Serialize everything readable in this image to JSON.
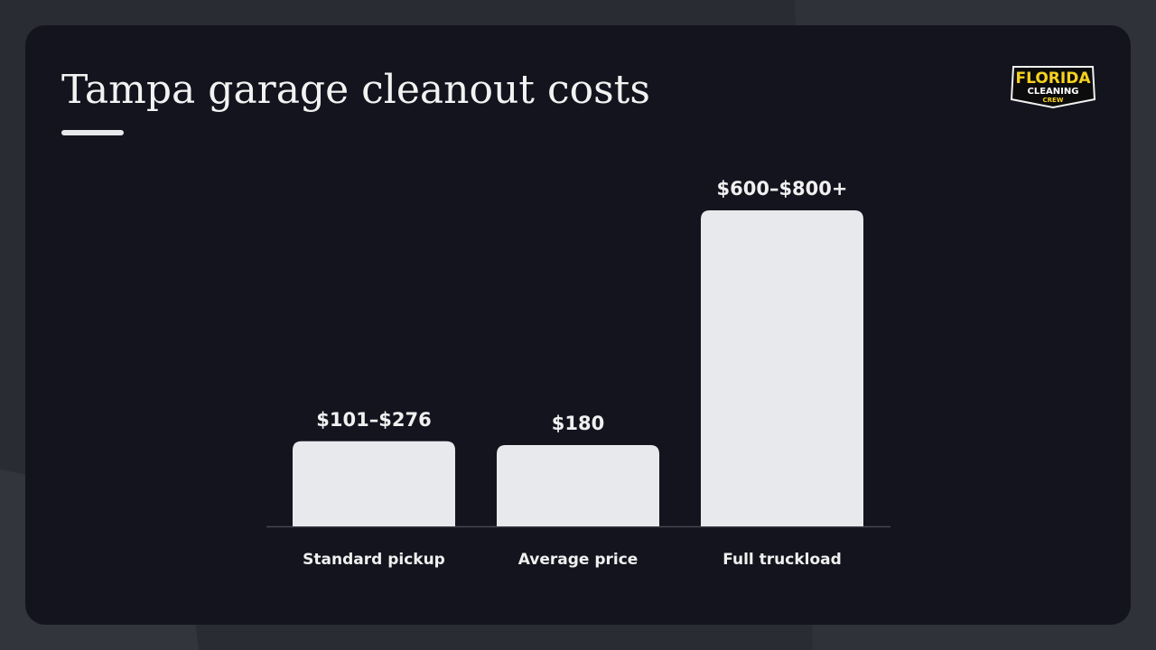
{
  "chart_data": {
    "type": "bar",
    "title": "Tampa garage cleanout costs",
    "categories": [
      "Standard pickup",
      "Average price",
      "Full truckload"
    ],
    "values": [
      188.5,
      180,
      700
    ],
    "value_labels": [
      "$101–$276",
      "$180",
      "$600–$800+"
    ],
    "color": "#e8e9ec"
  },
  "logo": {
    "lines": [
      "FLORIDA",
      "CLEANING",
      "CREW"
    ]
  }
}
